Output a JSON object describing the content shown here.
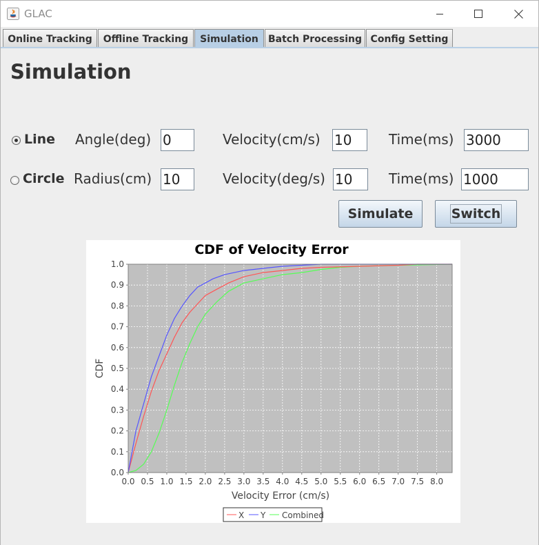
{
  "window": {
    "title": "GLAC"
  },
  "tabs": [
    {
      "label": "Online Tracking",
      "selected": false
    },
    {
      "label": "Offline Tracking",
      "selected": false
    },
    {
      "label": "Simulation",
      "selected": true
    },
    {
      "label": "Batch Processing",
      "selected": false
    },
    {
      "label": "Config Setting",
      "selected": false
    }
  ],
  "panel": {
    "heading": "Simulation",
    "line": {
      "radio_label": "Line",
      "selected": true,
      "param_label": "Angle(deg)",
      "param_value": "0",
      "velocity_label": "Velocity(cm/s)",
      "velocity_value": "10",
      "time_label": "Time(ms)",
      "time_value": "3000"
    },
    "circle": {
      "radio_label": "Circle",
      "selected": false,
      "param_label": "Radius(cm)",
      "param_value": "10",
      "velocity_label": "Velocity(deg/s)",
      "velocity_value": "10",
      "time_label": "Time(ms)",
      "time_value": "1000"
    },
    "simulate_label": "Simulate",
    "switch_label": "Switch"
  },
  "colors": {
    "tab_selected": "#b8cfe5",
    "plot_bg": "#c0c0c0",
    "x": "#ff5555",
    "y": "#5555ff",
    "combined": "#55ff55"
  },
  "chart_data": {
    "type": "line",
    "title": "CDF of Velocity Error",
    "xlabel": "Velocity Error (cm/s)",
    "ylabel": "CDF",
    "xlim": [
      0,
      8.4
    ],
    "ylim": [
      0,
      1.0
    ],
    "x_ticks": [
      "0.0",
      "0.5",
      "1.0",
      "1.5",
      "2.0",
      "2.5",
      "3.0",
      "3.5",
      "4.0",
      "4.5",
      "5.0",
      "5.5",
      "6.0",
      "6.5",
      "7.0",
      "7.5",
      "8.0"
    ],
    "y_ticks": [
      "0.0",
      "0.1",
      "0.2",
      "0.3",
      "0.4",
      "0.5",
      "0.6",
      "0.7",
      "0.8",
      "0.9",
      "1.0"
    ],
    "grid": true,
    "legend_position": "bottom",
    "series": [
      {
        "name": "X",
        "color": "#ff5555",
        "x": [
          0,
          0.2,
          0.4,
          0.6,
          0.8,
          1.0,
          1.2,
          1.4,
          1.6,
          1.8,
          2.0,
          2.3,
          2.6,
          3.0,
          3.5,
          4.0,
          4.5,
          5.0,
          6.0,
          7.0,
          7.5,
          8.4
        ],
        "y": [
          0,
          0.14,
          0.27,
          0.39,
          0.49,
          0.57,
          0.65,
          0.72,
          0.77,
          0.81,
          0.85,
          0.88,
          0.91,
          0.94,
          0.96,
          0.97,
          0.98,
          0.985,
          0.99,
          0.995,
          1.0,
          1.0
        ]
      },
      {
        "name": "Y",
        "color": "#5555ff",
        "x": [
          0,
          0.2,
          0.4,
          0.6,
          0.8,
          1.0,
          1.2,
          1.4,
          1.6,
          1.8,
          2.0,
          2.2,
          2.5,
          3.0,
          3.5,
          4.0,
          4.5,
          5.0,
          5.5,
          6.0,
          8.4
        ],
        "y": [
          0,
          0.2,
          0.33,
          0.46,
          0.56,
          0.66,
          0.74,
          0.8,
          0.85,
          0.89,
          0.91,
          0.93,
          0.95,
          0.97,
          0.98,
          0.99,
          0.995,
          1.0,
          1.0,
          1.0,
          1.0
        ]
      },
      {
        "name": "Combined",
        "color": "#55ff55",
        "x": [
          0,
          0.2,
          0.4,
          0.6,
          0.8,
          1.0,
          1.2,
          1.4,
          1.6,
          1.8,
          2.0,
          2.3,
          2.6,
          3.0,
          3.5,
          4.0,
          4.5,
          5.0,
          5.5,
          6.0,
          7.0,
          8.4
        ],
        "y": [
          0,
          0.01,
          0.04,
          0.1,
          0.19,
          0.3,
          0.42,
          0.53,
          0.62,
          0.7,
          0.76,
          0.82,
          0.87,
          0.91,
          0.93,
          0.95,
          0.96,
          0.975,
          0.985,
          0.99,
          0.995,
          1.0
        ]
      }
    ]
  }
}
